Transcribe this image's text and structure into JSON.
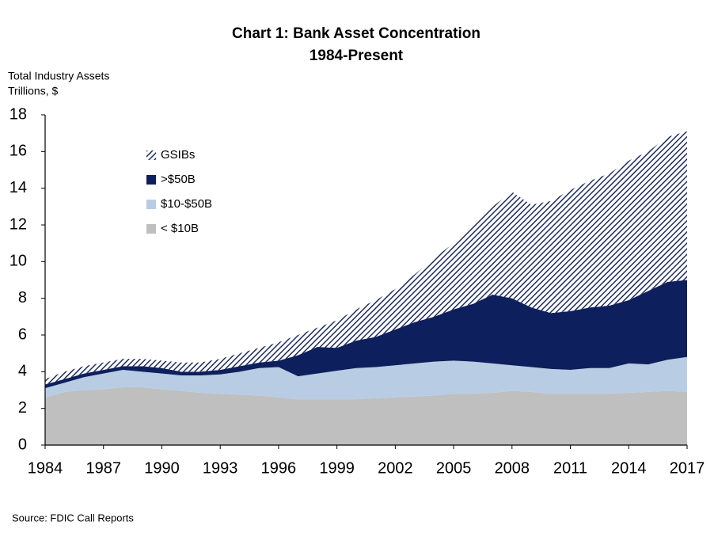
{
  "chart_data": {
    "type": "stacked_area",
    "title": [
      "Chart 1: Bank Asset Concentration",
      "1984-Present"
    ],
    "y_label": [
      "Total Industry Assets",
      "Trillions, $"
    ],
    "source": "Source:   FDIC Call Reports",
    "x": [
      1984,
      1985,
      1986,
      1987,
      1988,
      1989,
      1990,
      1991,
      1992,
      1993,
      1994,
      1995,
      1996,
      1997,
      1998,
      1999,
      2000,
      2001,
      2002,
      2003,
      2004,
      2005,
      2006,
      2007,
      2008,
      2009,
      2010,
      2011,
      2012,
      2013,
      2014,
      2015,
      2016,
      2017
    ],
    "xlim": [
      1984,
      2017
    ],
    "xticks": [
      1984,
      1987,
      1990,
      1993,
      1996,
      1999,
      2002,
      2005,
      2008,
      2011,
      2014,
      2017
    ],
    "ylim": [
      0,
      18
    ],
    "yticks": [
      0,
      2,
      4,
      6,
      8,
      10,
      12,
      14,
      16,
      18
    ],
    "grid": false,
    "legend": "upper left",
    "series": [
      {
        "name": "< $10B",
        "color": "#bfbfbf",
        "values": [
          2.6,
          2.9,
          3.0,
          3.05,
          3.15,
          3.15,
          3.05,
          2.95,
          2.85,
          2.8,
          2.75,
          2.7,
          2.6,
          2.5,
          2.5,
          2.5,
          2.5,
          2.55,
          2.6,
          2.65,
          2.7,
          2.8,
          2.8,
          2.85,
          2.95,
          2.9,
          2.8,
          2.8,
          2.8,
          2.8,
          2.85,
          2.9,
          2.95,
          2.9
        ]
      },
      {
        "name": "$10-$50B",
        "color": "#b8cce4",
        "values": [
          0.5,
          0.5,
          0.7,
          0.85,
          0.95,
          0.85,
          0.85,
          0.85,
          0.95,
          1.05,
          1.25,
          1.5,
          1.65,
          1.25,
          1.4,
          1.55,
          1.7,
          1.7,
          1.75,
          1.8,
          1.85,
          1.8,
          1.75,
          1.6,
          1.4,
          1.35,
          1.35,
          1.3,
          1.4,
          1.4,
          1.6,
          1.5,
          1.7,
          1.9
        ]
      },
      {
        "name": ">$50B",
        "color": "#0d1f5c",
        "values": [
          0.2,
          0.2,
          0.2,
          0.2,
          0.2,
          0.3,
          0.3,
          0.2,
          0.2,
          0.25,
          0.3,
          0.3,
          0.35,
          1.15,
          1.45,
          1.25,
          1.5,
          1.65,
          1.95,
          2.25,
          2.45,
          2.8,
          3.15,
          3.75,
          3.65,
          3.25,
          3.05,
          3.2,
          3.3,
          3.4,
          3.45,
          4.0,
          4.25,
          4.2
        ]
      },
      {
        "name": "GSIBs",
        "color": "#1f2d5c",
        "hatch": true,
        "values": [
          0.3,
          0.4,
          0.4,
          0.4,
          0.4,
          0.4,
          0.4,
          0.5,
          0.5,
          0.6,
          0.7,
          0.8,
          1.0,
          1.1,
          1.05,
          1.5,
          1.7,
          2.0,
          2.2,
          2.6,
          3.2,
          3.6,
          4.3,
          4.8,
          5.8,
          5.6,
          6.1,
          6.6,
          6.9,
          7.2,
          7.6,
          7.6,
          7.9,
          8.1
        ]
      }
    ]
  }
}
